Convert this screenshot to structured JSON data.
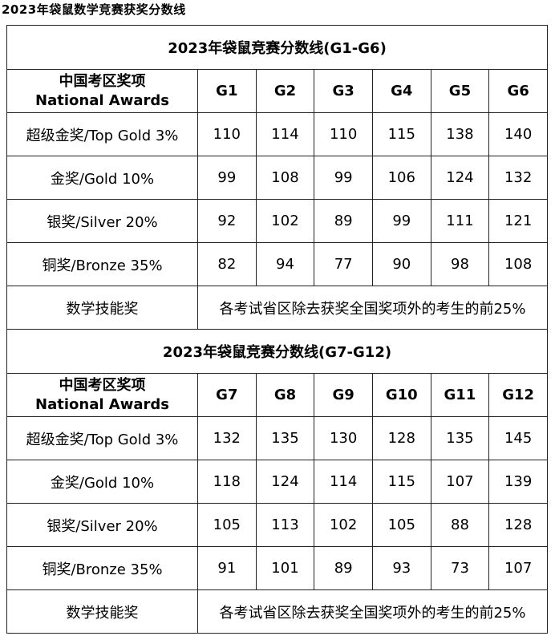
{
  "page_title": "2023年袋鼠数学竞赛获奖分数线",
  "header_label_cn": "中国考区奖项",
  "header_label_en": "National Awards",
  "sections": [
    {
      "title": "2023年袋鼠竞赛分数线(G1-G6)",
      "grades": [
        "G1",
        "G2",
        "G3",
        "G4",
        "G5",
        "G6"
      ],
      "rows": [
        {
          "label": "超级金奖/Top Gold 3%",
          "values": [
            "110",
            "114",
            "110",
            "115",
            "138",
            "140"
          ]
        },
        {
          "label": "金奖/Gold 10%",
          "values": [
            "99",
            "108",
            "99",
            "106",
            "124",
            "132"
          ]
        },
        {
          "label": "银奖/Silver 20%",
          "values": [
            "92",
            "102",
            "89",
            "99",
            "111",
            "121"
          ]
        },
        {
          "label": "铜奖/Bronze 35%",
          "values": [
            "82",
            "94",
            "77",
            "90",
            "98",
            "108"
          ]
        }
      ],
      "skill_label": "数学技能奖",
      "skill_note": "各考试省区除去获奖全国奖项外的考生的前25%"
    },
    {
      "title": "2023年袋鼠竞赛分数线(G7-G12)",
      "grades": [
        "G7",
        "G8",
        "G9",
        "G10",
        "G11",
        "G12"
      ],
      "rows": [
        {
          "label": "超级金奖/Top Gold 3%",
          "values": [
            "132",
            "135",
            "130",
            "128",
            "135",
            "145"
          ]
        },
        {
          "label": "金奖/Gold 10%",
          "values": [
            "118",
            "124",
            "114",
            "115",
            "107",
            "139"
          ]
        },
        {
          "label": "银奖/Silver 20%",
          "values": [
            "105",
            "113",
            "102",
            "105",
            "88",
            "128"
          ]
        },
        {
          "label": "铜奖/Bronze 35%",
          "values": [
            "91",
            "101",
            "89",
            "93",
            "73",
            "107"
          ]
        }
      ],
      "skill_label": "数学技能奖",
      "skill_note": "各考试省区除去获奖全国奖项外的考生的前25%"
    }
  ]
}
